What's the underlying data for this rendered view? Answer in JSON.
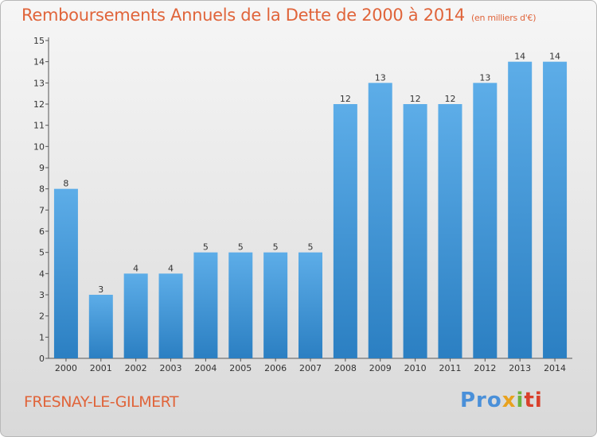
{
  "title": "Remboursements Annuels de la Dette de 2000 à 2014",
  "subtitle": "(en milliers d'€)",
  "commune": "FRESNAY-LE-GILMERT",
  "logo": {
    "p1": "Pro",
    "p2": "x",
    "p3": "i",
    "p4": "ti"
  },
  "colors": {
    "title": "#e0643a",
    "bar_light": "#5dade8",
    "bar_dark": "#2b7fc2"
  },
  "chart_data": {
    "type": "bar",
    "categories": [
      "2000",
      "2001",
      "2002",
      "2003",
      "2004",
      "2005",
      "2006",
      "2007",
      "2008",
      "2009",
      "2010",
      "2011",
      "2012",
      "2013",
      "2014"
    ],
    "values": [
      8,
      3,
      4,
      4,
      5,
      5,
      5,
      5,
      12,
      13,
      12,
      12,
      13,
      14,
      14
    ],
    "ylim": [
      0,
      15
    ],
    "yticks": [
      0,
      1,
      2,
      3,
      4,
      5,
      6,
      7,
      8,
      9,
      10,
      11,
      12,
      13,
      14,
      15
    ],
    "grid": false,
    "legend": "none"
  }
}
